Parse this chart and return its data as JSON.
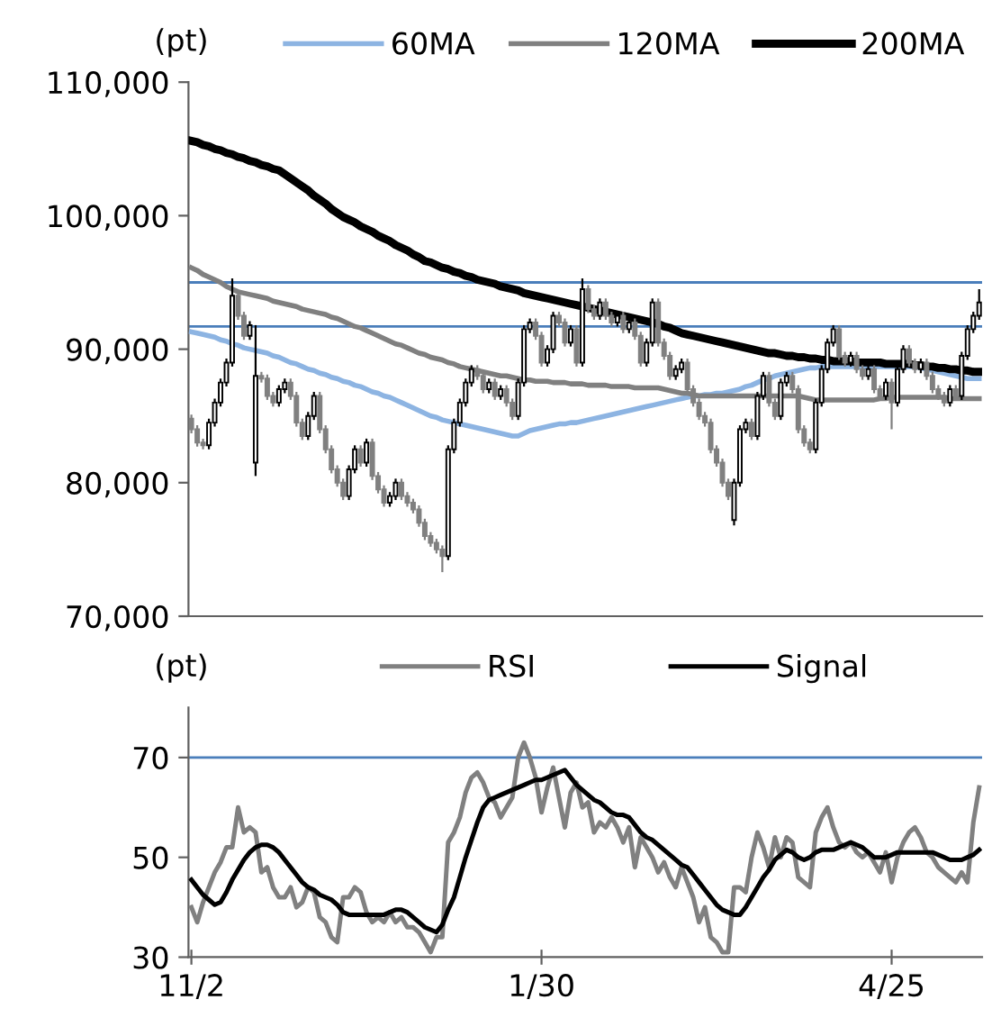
{
  "chart_data": [
    {
      "type": "candlestick",
      "ylabel": "(pt)",
      "categories": [
        null,
        null,
        null,
        null,
        null,
        null,
        null,
        null,
        null,
        null,
        null,
        null,
        null,
        null,
        null,
        null,
        null,
        null,
        null,
        null,
        null,
        null,
        null,
        null,
        null,
        null,
        null,
        null,
        null,
        null,
        null,
        null,
        null,
        null,
        null,
        null,
        null,
        null,
        null,
        null,
        null,
        null,
        null,
        null,
        null,
        null,
        null,
        null,
        null,
        null,
        null,
        null,
        null,
        null,
        null,
        null,
        null,
        null,
        null,
        null,
        null,
        null,
        null,
        null,
        null,
        null,
        null,
        null,
        null,
        null,
        null,
        null,
        null,
        null,
        null,
        null,
        null,
        null,
        null,
        null,
        null,
        null,
        null,
        null,
        null,
        null,
        null,
        null,
        null,
        null,
        null,
        null,
        null,
        null,
        null,
        null,
        null,
        null,
        null,
        null,
        null,
        null,
        null,
        null,
        null,
        null,
        null,
        null,
        null,
        null,
        null,
        null,
        null,
        null,
        null,
        null,
        null,
        null,
        null,
        null,
        null,
        null,
        null,
        null,
        null,
        null,
        null,
        null,
        null,
        null,
        null,
        null,
        null,
        null,
        null,
        null
      ],
      "ohlc": [
        [
          84800,
          85100,
          83700,
          84000
        ],
        [
          84000,
          84300,
          82700,
          83000
        ],
        [
          83000,
          83300,
          82500,
          82800
        ],
        [
          82800,
          84800,
          82500,
          84500
        ],
        [
          84500,
          86300,
          84200,
          86000
        ],
        [
          86000,
          87800,
          85700,
          87500
        ],
        [
          87500,
          89300,
          87200,
          89000
        ],
        [
          89000,
          95300,
          88700,
          94000
        ],
        [
          94000,
          94300,
          92200,
          92500
        ],
        [
          92500,
          92800,
          90700,
          91000
        ],
        [
          91000,
          92100,
          90700,
          91800
        ],
        [
          81500,
          91800,
          80500,
          88000
        ],
        [
          88000,
          88300,
          87500,
          87800
        ],
        [
          87800,
          88100,
          86200,
          86500
        ],
        [
          86500,
          86800,
          85700,
          86000
        ],
        [
          86000,
          87300,
          85700,
          87000
        ],
        [
          87000,
          87800,
          86700,
          87500
        ],
        [
          87500,
          87800,
          86200,
          86500
        ],
        [
          86500,
          86800,
          84200,
          84500
        ],
        [
          84500,
          84800,
          83200,
          83500
        ],
        [
          83500,
          85300,
          83200,
          85000
        ],
        [
          85000,
          86800,
          84700,
          86500
        ],
        [
          86500,
          86800,
          83700,
          84000
        ],
        [
          84000,
          84300,
          82200,
          82500
        ],
        [
          82500,
          82800,
          80700,
          81000
        ],
        [
          81000,
          81300,
          79700,
          80000
        ],
        [
          80000,
          80300,
          78700,
          79000
        ],
        [
          79000,
          81300,
          78700,
          81000
        ],
        [
          81000,
          82800,
          80700,
          82500
        ],
        [
          82500,
          82800,
          81200,
          81500
        ],
        [
          81500,
          83300,
          81200,
          83000
        ],
        [
          83000,
          83300,
          80200,
          80500
        ],
        [
          80500,
          80800,
          79200,
          79500
        ],
        [
          79500,
          79800,
          78200,
          78500
        ],
        [
          78500,
          79300,
          78200,
          79000
        ],
        [
          79000,
          80300,
          78700,
          80000
        ],
        [
          80000,
          80300,
          78700,
          79000
        ],
        [
          79000,
          79300,
          78200,
          78500
        ],
        [
          78500,
          78800,
          77700,
          78000
        ],
        [
          78000,
          78300,
          76700,
          77000
        ],
        [
          77000,
          77300,
          75700,
          76000
        ],
        [
          76000,
          76300,
          75200,
          75500
        ],
        [
          75500,
          75800,
          74700,
          75000
        ],
        [
          75000,
          75300,
          73300,
          74500
        ],
        [
          74500,
          82800,
          74200,
          82500
        ],
        [
          82500,
          84800,
          82200,
          84500
        ],
        [
          84500,
          86300,
          84200,
          86000
        ],
        [
          86000,
          87800,
          85700,
          87500
        ],
        [
          87500,
          88800,
          87200,
          88500
        ],
        [
          88500,
          88800,
          87700,
          88000
        ],
        [
          88000,
          88300,
          86700,
          87000
        ],
        [
          87000,
          87800,
          86700,
          87500
        ],
        [
          87500,
          87800,
          86200,
          86500
        ],
        [
          86500,
          87300,
          86200,
          87000
        ],
        [
          87000,
          87300,
          85700,
          86000
        ],
        [
          86000,
          86300,
          84700,
          85000
        ],
        [
          85000,
          87800,
          84700,
          87500
        ],
        [
          87500,
          91800,
          87200,
          91500
        ],
        [
          91500,
          92300,
          91200,
          92000
        ],
        [
          92000,
          92300,
          90700,
          91000
        ],
        [
          91000,
          91300,
          88700,
          89000
        ],
        [
          89000,
          90300,
          88700,
          90000
        ],
        [
          90000,
          92800,
          89700,
          92500
        ],
        [
          92500,
          92800,
          91700,
          92000
        ],
        [
          92000,
          92300,
          90200,
          90500
        ],
        [
          90500,
          91800,
          90200,
          91500
        ],
        [
          91500,
          91800,
          88700,
          89000
        ],
        [
          89000,
          95300,
          88700,
          94500
        ],
        [
          94500,
          94800,
          92700,
          93000
        ],
        [
          93000,
          93300,
          92200,
          92500
        ],
        [
          92500,
          93800,
          92200,
          93500
        ],
        [
          93500,
          93800,
          92200,
          92500
        ],
        [
          92500,
          92800,
          91700,
          92000
        ],
        [
          92000,
          92800,
          91700,
          92500
        ],
        [
          92500,
          92800,
          91200,
          91500
        ],
        [
          91500,
          92300,
          91200,
          92000
        ],
        [
          92000,
          92300,
          90700,
          91000
        ],
        [
          91000,
          91300,
          88700,
          89000
        ],
        [
          89000,
          90800,
          88700,
          90500
        ],
        [
          90500,
          93800,
          90200,
          93500
        ],
        [
          93500,
          93800,
          90200,
          90500
        ],
        [
          90500,
          90800,
          89200,
          89500
        ],
        [
          89500,
          89800,
          87700,
          88000
        ],
        [
          88000,
          88800,
          87700,
          88500
        ],
        [
          88500,
          89300,
          88200,
          89000
        ],
        [
          89000,
          89300,
          86700,
          87000
        ],
        [
          87000,
          87300,
          85700,
          86000
        ],
        [
          86000,
          86300,
          84700,
          85000
        ],
        [
          85000,
          85300,
          84200,
          84500
        ],
        [
          84500,
          84800,
          82200,
          82500
        ],
        [
          82500,
          82800,
          81200,
          81500
        ],
        [
          81500,
          81800,
          79700,
          80000
        ],
        [
          80000,
          80300,
          78700,
          79000
        ],
        [
          77200,
          80300,
          76800,
          80000
        ],
        [
          80000,
          84300,
          79700,
          84000
        ],
        [
          84000,
          84800,
          83700,
          84500
        ],
        [
          84500,
          84800,
          83200,
          83500
        ],
        [
          83500,
          86800,
          83200,
          86500
        ],
        [
          86500,
          88300,
          86200,
          88000
        ],
        [
          88000,
          88300,
          85700,
          86000
        ],
        [
          86000,
          86300,
          84700,
          85000
        ],
        [
          85000,
          87800,
          84700,
          87500
        ],
        [
          87500,
          88300,
          87200,
          88000
        ],
        [
          88000,
          88300,
          86700,
          87000
        ],
        [
          87000,
          87300,
          83700,
          84000
        ],
        [
          84000,
          84300,
          82700,
          83000
        ],
        [
          83000,
          83300,
          82200,
          82500
        ],
        [
          82500,
          86300,
          82200,
          86000
        ],
        [
          86000,
          88800,
          85700,
          88500
        ],
        [
          88500,
          90800,
          88200,
          90500
        ],
        [
          90500,
          91800,
          90200,
          91500
        ],
        [
          91500,
          91800,
          89200,
          89500
        ],
        [
          89500,
          89800,
          88700,
          89000
        ],
        [
          89000,
          89800,
          88700,
          89500
        ],
        [
          89500,
          89800,
          88200,
          88500
        ],
        [
          88500,
          88800,
          87700,
          88000
        ],
        [
          88000,
          88800,
          87700,
          88500
        ],
        [
          88500,
          88800,
          86700,
          87000
        ],
        [
          87000,
          87300,
          86200,
          86500
        ],
        [
          86500,
          87800,
          86200,
          87500
        ],
        [
          87500,
          87800,
          84000,
          86000
        ],
        [
          86000,
          88800,
          85700,
          88500
        ],
        [
          88500,
          90300,
          88200,
          90000
        ],
        [
          90000,
          90300,
          88700,
          89000
        ],
        [
          89000,
          89300,
          88200,
          88500
        ],
        [
          88500,
          89300,
          88200,
          89000
        ],
        [
          89000,
          89300,
          87700,
          88000
        ],
        [
          88000,
          88300,
          86700,
          87000
        ],
        [
          87000,
          87300,
          86200,
          86500
        ],
        [
          86500,
          86800,
          85700,
          86000
        ],
        [
          86000,
          87300,
          85700,
          87000
        ],
        [
          87000,
          87300,
          86200,
          86500
        ],
        [
          86500,
          89800,
          86200,
          89500
        ],
        [
          89500,
          91800,
          89200,
          91500
        ],
        [
          91500,
          92800,
          91200,
          92500
        ],
        [
          92500,
          94500,
          92200,
          93500
        ]
      ],
      "series": [
        {
          "name": "60MA",
          "type": "line",
          "color": "#8db4e2",
          "values": [
            91300,
            91200,
            91100,
            91000,
            90900,
            90700,
            90600,
            90400,
            90300,
            90100,
            90000,
            89900,
            89800,
            89700,
            89500,
            89400,
            89200,
            89000,
            88900,
            88700,
            88500,
            88400,
            88200,
            88100,
            87900,
            87800,
            87600,
            87500,
            87300,
            87200,
            87000,
            86800,
            86700,
            86500,
            86400,
            86200,
            86000,
            85800,
            85600,
            85400,
            85200,
            85000,
            84900,
            84700,
            84600,
            84500,
            84400,
            84300,
            84200,
            84100,
            84000,
            83900,
            83800,
            83700,
            83600,
            83500,
            83500,
            83700,
            83900,
            84000,
            84100,
            84200,
            84300,
            84400,
            84400,
            84500,
            84500,
            84600,
            84700,
            84800,
            84900,
            85000,
            85100,
            85200,
            85300,
            85400,
            85500,
            85600,
            85700,
            85800,
            85900,
            86000,
            86100,
            86200,
            86300,
            86400,
            86500,
            86500,
            86600,
            86600,
            86700,
            86700,
            86800,
            86900,
            87000,
            87200,
            87300,
            87500,
            87700,
            87800,
            88000,
            88100,
            88200,
            88300,
            88400,
            88500,
            88600,
            88600,
            88700,
            88700,
            88700,
            88700,
            88700,
            88700,
            88700,
            88700,
            88700,
            88700,
            88700,
            88700,
            88700,
            88700,
            88700,
            88700,
            88700,
            88600,
            88500,
            88400,
            88300,
            88200,
            88100,
            88000,
            87900,
            87800,
            87800,
            87800
          ]
        },
        {
          "name": "120MA",
          "type": "line",
          "color": "#808080",
          "values": [
            96100,
            95900,
            95600,
            95400,
            95200,
            95000,
            94700,
            94500,
            94300,
            94200,
            94100,
            94000,
            93900,
            93800,
            93600,
            93500,
            93400,
            93300,
            93200,
            93000,
            92900,
            92800,
            92700,
            92600,
            92400,
            92300,
            92100,
            91900,
            91700,
            91600,
            91400,
            91200,
            91000,
            90800,
            90600,
            90400,
            90300,
            90100,
            89900,
            89700,
            89600,
            89400,
            89300,
            89200,
            89000,
            88900,
            88700,
            88600,
            88500,
            88400,
            88300,
            88200,
            88100,
            88000,
            88000,
            87900,
            87800,
            87700,
            87700,
            87600,
            87600,
            87600,
            87500,
            87500,
            87500,
            87400,
            87400,
            87400,
            87300,
            87300,
            87300,
            87300,
            87200,
            87200,
            87200,
            87200,
            87100,
            87100,
            87100,
            87100,
            87100,
            87000,
            86900,
            86800,
            86700,
            86700,
            86600,
            86500,
            86500,
            86500,
            86500,
            86500,
            86500,
            86500,
            86500,
            86500,
            86500,
            86500,
            86500,
            86500,
            86500,
            86500,
            86500,
            86500,
            86500,
            86400,
            86300,
            86200,
            86200,
            86200,
            86200,
            86200,
            86200,
            86200,
            86200,
            86200,
            86200,
            86200,
            86300,
            86300,
            86400,
            86400,
            86400,
            86400,
            86400,
            86400,
            86400,
            86400,
            86400,
            86400,
            86300,
            86300,
            86300,
            86300,
            86300,
            86300
          ]
        },
        {
          "name": "200MA",
          "type": "line",
          "color": "#000000",
          "values": [
            105600,
            105500,
            105300,
            105200,
            105000,
            104900,
            104700,
            104600,
            104400,
            104300,
            104100,
            104000,
            103800,
            103700,
            103500,
            103400,
            103100,
            102800,
            102500,
            102200,
            101900,
            101500,
            101200,
            100900,
            100500,
            100200,
            99900,
            99700,
            99500,
            99200,
            99000,
            98800,
            98500,
            98300,
            98100,
            97800,
            97600,
            97400,
            97100,
            96900,
            96600,
            96500,
            96300,
            96100,
            96000,
            95800,
            95700,
            95500,
            95400,
            95200,
            95100,
            95000,
            94900,
            94700,
            94600,
            94500,
            94400,
            94200,
            94100,
            94000,
            93900,
            93800,
            93700,
            93600,
            93500,
            93400,
            93300,
            93200,
            93100,
            93000,
            92900,
            92800,
            92700,
            92600,
            92500,
            92400,
            92300,
            92200,
            92100,
            92000,
            91900,
            91700,
            91600,
            91400,
            91200,
            91100,
            91000,
            90900,
            90800,
            90700,
            90600,
            90500,
            90400,
            90300,
            90200,
            90100,
            90000,
            89900,
            89800,
            89700,
            89700,
            89600,
            89500,
            89500,
            89400,
            89400,
            89300,
            89300,
            89200,
            89200,
            89100,
            89100,
            89100,
            89100,
            89000,
            89000,
            89000,
            89000,
            89000,
            88900,
            88900,
            88900,
            88900,
            88900,
            88800,
            88800,
            88700,
            88700,
            88600,
            88600,
            88500,
            88500,
            88400,
            88400,
            88300,
            88300
          ]
        }
      ],
      "ylim": [
        70000,
        110000
      ],
      "yticks": [
        {
          "value": 70000,
          "label": "70,000"
        },
        {
          "value": 80000,
          "label": "80,000"
        },
        {
          "value": 90000,
          "label": "90,000"
        },
        {
          "value": 100000,
          "label": "100,000"
        },
        {
          "value": 110000,
          "label": "110,000"
        }
      ],
      "ref_lines": [
        {
          "axis": "y",
          "value": 95000,
          "color": "#4a7ebb"
        },
        {
          "axis": "y",
          "value": 91700,
          "color": "#4a7ebb"
        }
      ],
      "legend": "top"
    },
    {
      "type": "line",
      "ylabel": "(pt)",
      "categories": [
        "11/2",
        null,
        null,
        null,
        null,
        null,
        null,
        null,
        null,
        null,
        null,
        null,
        null,
        null,
        null,
        null,
        null,
        null,
        null,
        null,
        null,
        null,
        null,
        null,
        null,
        null,
        null,
        null,
        null,
        null,
        null,
        null,
        null,
        null,
        null,
        null,
        null,
        null,
        null,
        null,
        null,
        null,
        null,
        null,
        null,
        null,
        null,
        null,
        null,
        null,
        null,
        null,
        null,
        null,
        null,
        null,
        null,
        null,
        null,
        null,
        "1/30",
        null,
        null,
        null,
        null,
        null,
        null,
        null,
        null,
        null,
        null,
        null,
        null,
        null,
        null,
        null,
        null,
        null,
        null,
        null,
        null,
        null,
        null,
        null,
        null,
        null,
        null,
        null,
        null,
        null,
        null,
        null,
        null,
        null,
        null,
        null,
        null,
        null,
        null,
        null,
        null,
        null,
        null,
        null,
        null,
        null,
        null,
        null,
        null,
        null,
        null,
        null,
        null,
        null,
        null,
        null,
        null,
        null,
        null,
        null,
        "4/25",
        null,
        null,
        null,
        null,
        null,
        null,
        null,
        null,
        null,
        null,
        null,
        null,
        null,
        null,
        null
      ],
      "series": [
        {
          "name": "RSI",
          "color": "#808080",
          "values": [
            40,
            37,
            41,
            44,
            47,
            49,
            52,
            52,
            60,
            55,
            56,
            55,
            47,
            48,
            44,
            42,
            42,
            44,
            40,
            41,
            44,
            43,
            38,
            37,
            34,
            33,
            42,
            42,
            44,
            43,
            39,
            37,
            38,
            37,
            39,
            37,
            38,
            36,
            36,
            35,
            33,
            31,
            34,
            34,
            53,
            55,
            58,
            63,
            66,
            67,
            65,
            62,
            61,
            58,
            60,
            62,
            70,
            73,
            70,
            66,
            59,
            64,
            68,
            62,
            56,
            63,
            65,
            60,
            61,
            55,
            57,
            56,
            58,
            56,
            53,
            56,
            48,
            54,
            52,
            50,
            47,
            49,
            46,
            44,
            48,
            45,
            42,
            37,
            40,
            34,
            33,
            31,
            31,
            44,
            44,
            43,
            50,
            55,
            52,
            48,
            54,
            50,
            54,
            53,
            46,
            45,
            44,
            55,
            58,
            60,
            56,
            53,
            52,
            53,
            51,
            50,
            51,
            49,
            47,
            51,
            45,
            50,
            53,
            55,
            56,
            54,
            51,
            50,
            48,
            47,
            46,
            45,
            47,
            45,
            57,
            64
          ]
        },
        {
          "name": "Signal",
          "color": "#000000",
          "values": [
            45.5,
            44,
            42.5,
            41.5,
            40.5,
            41,
            43,
            45.5,
            47.5,
            49.5,
            51,
            52,
            52.5,
            52.5,
            52,
            51,
            49.5,
            48,
            46.5,
            45,
            44,
            43.5,
            42.5,
            42,
            41.5,
            40.5,
            39,
            38.5,
            38.5,
            38.5,
            38.5,
            38.5,
            38.5,
            38.5,
            39,
            39.5,
            39.5,
            39,
            38,
            37,
            36,
            35.5,
            35,
            36.5,
            39.5,
            42,
            46,
            50,
            53.5,
            57,
            60,
            61.5,
            62,
            62.5,
            63,
            63.5,
            64,
            64.5,
            65,
            65.5,
            65.5,
            66,
            66.5,
            67,
            67.5,
            66,
            64.5,
            63.5,
            62.5,
            61.5,
            61,
            60,
            59,
            58.5,
            58.5,
            58,
            56.5,
            55,
            54,
            53.5,
            52.5,
            51.5,
            50.5,
            49.5,
            48.5,
            48,
            46.5,
            45,
            43.5,
            42,
            40.5,
            39.5,
            39,
            38.5,
            38.5,
            40,
            42,
            44,
            46,
            47.5,
            49.5,
            50.5,
            51.5,
            51,
            50,
            49.5,
            50,
            51,
            51.5,
            51.5,
            51.5,
            52,
            52.5,
            53,
            52.5,
            52,
            51,
            50,
            50,
            50,
            50.5,
            51,
            51,
            51,
            51,
            51,
            51,
            51,
            50.5,
            50,
            49.5,
            49.5,
            49.5,
            50,
            50.5,
            51.5
          ]
        }
      ],
      "ylim": [
        30,
        80
      ],
      "yticks": [
        30,
        50,
        70
      ],
      "ref_lines": [
        {
          "axis": "y",
          "value": 70,
          "color": "#4a7ebb"
        }
      ],
      "legend": "top"
    }
  ]
}
